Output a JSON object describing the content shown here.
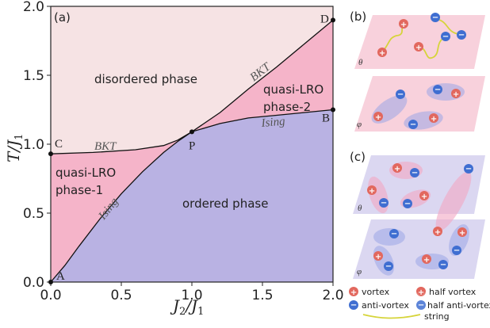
{
  "chart_data": {
    "type": "area",
    "panel_label": "(a)",
    "xlabel": "J₂/J₁",
    "ylabel": "T/J₁",
    "xlim": [
      0,
      2.0
    ],
    "ylim": [
      0,
      2.0
    ],
    "x_ticks": [
      "0.0",
      "0.5",
      "1.0",
      "1.5",
      "2.0"
    ],
    "y_ticks": [
      "0.0",
      "0.5",
      "1.0",
      "1.5",
      "2.0"
    ],
    "regions": [
      {
        "name": "disordered phase",
        "color": "#f6e3e4"
      },
      {
        "name": "quasi-LRO phase-1",
        "color": "#f5b4c9"
      },
      {
        "name": "quasi-LRO phase-2",
        "color": "#f5b4c9"
      },
      {
        "name": "ordered phase",
        "color": "#b9b2e3"
      }
    ],
    "boundaries": [
      {
        "label": "BKT",
        "from": "C",
        "to": "P",
        "x": [
          0,
          0.3,
          0.6,
          0.8,
          0.9,
          1.0
        ],
        "y": [
          0.93,
          0.94,
          0.96,
          0.99,
          1.03,
          1.09
        ]
      },
      {
        "label": "BKT",
        "from": "P",
        "to": "D",
        "x": [
          1.0,
          1.2,
          1.4,
          1.6,
          1.8,
          2.0
        ],
        "y": [
          1.09,
          1.23,
          1.4,
          1.56,
          1.73,
          1.9
        ]
      },
      {
        "label": "Ising",
        "from": "A",
        "to": "P",
        "x": [
          0,
          0.1,
          0.2,
          0.35,
          0.5,
          0.65,
          0.8,
          0.9,
          1.0
        ],
        "y": [
          0.0,
          0.12,
          0.26,
          0.46,
          0.64,
          0.8,
          0.94,
          1.02,
          1.09
        ]
      },
      {
        "label": "Ising",
        "from": "P",
        "to": "B",
        "x": [
          1.0,
          1.2,
          1.4,
          1.6,
          1.8,
          2.0
        ],
        "y": [
          1.09,
          1.15,
          1.19,
          1.21,
          1.23,
          1.25
        ]
      }
    ],
    "points": [
      {
        "label": "A",
        "x": 0.0,
        "y": 0.0
      },
      {
        "label": "B",
        "x": 2.0,
        "y": 1.25
      },
      {
        "label": "C",
        "x": 0.0,
        "y": 0.93
      },
      {
        "label": "D",
        "x": 2.0,
        "y": 1.9
      },
      {
        "label": "P",
        "x": 1.0,
        "y": 1.09
      }
    ]
  },
  "panels": {
    "b_label": "(b)",
    "c_label": "(c)",
    "theta": "θ",
    "phi": "φ",
    "plus": "+",
    "minus": "−"
  },
  "legend": {
    "vortex": "vortex",
    "half_vortex": "half vortex",
    "anti_vortex": "anti-vortex",
    "half_anti_vortex": "half anti-vortex",
    "string": "string"
  },
  "colors": {
    "disordered": "#f6e3e4",
    "quasi_lro": "#f5b4c9",
    "ordered": "#b9b2e3",
    "pink_sheet": "#f7c9d6",
    "purple_sheet": "#d5d0ee",
    "vortex": "#e2685e",
    "anti_vortex": "#3f6ed1",
    "string": "#d6d43a"
  }
}
